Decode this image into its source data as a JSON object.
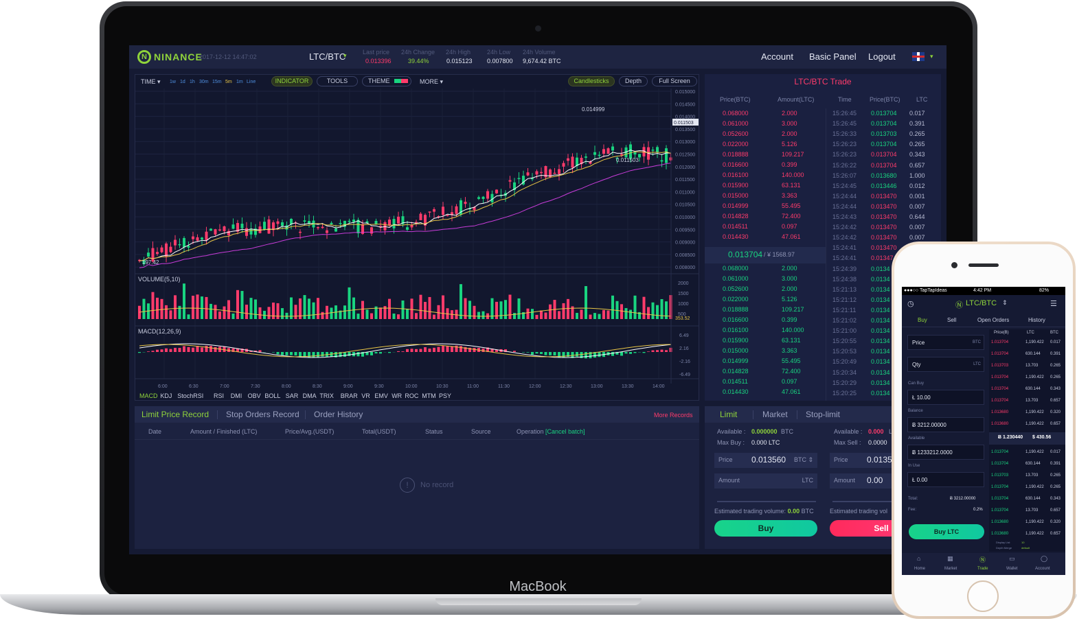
{
  "device": {
    "brand": "MacBook"
  },
  "header": {
    "logo_mark": "N",
    "logo_text": "NINANCE",
    "datetime": "2017-12-12 14:47:02",
    "pair": "LTC/BTC",
    "pair_caret": "▾",
    "stats": [
      {
        "label": "Last price",
        "value": "0.013396",
        "color": "#ff3b6b"
      },
      {
        "label": "24h Change",
        "value": "39.44%",
        "color": "#8fd33b"
      },
      {
        "label": "24h High",
        "value": "0.015123",
        "color": "#e4e7f2"
      },
      {
        "label": "24h Low",
        "value": "0.007800",
        "color": "#e4e7f2"
      },
      {
        "label": "24h Volume",
        "value": "9,674.42 BTC",
        "color": "#e4e7f2"
      }
    ],
    "nav": [
      "Account",
      "Basic Panel",
      "Logout"
    ],
    "lang_caret": "▾"
  },
  "chart_toolbar": {
    "time_label": "TIME ▾",
    "resolutions": [
      "1w",
      "1d",
      "1h",
      "30m",
      "15m",
      "5m",
      "1m",
      "Line"
    ],
    "indicator": "INDICATOR",
    "tools": "TOOLS",
    "theme": "THEME",
    "more": "MORE ▾",
    "candlesticks": "Candlesticks",
    "depth": "Depth",
    "fullscreen": "Full Screen"
  },
  "chart_data": {
    "type": "candlestick",
    "price_axis": [
      "0.015000",
      "0.014500",
      "0.014000",
      "0.013500",
      "0.013000",
      "0.012500",
      "0.012000",
      "0.011500",
      "0.011000",
      "0.010500",
      "0.010000",
      "0.009500",
      "0.009000",
      "0.008500",
      "0.008000"
    ],
    "last_price_tag": "0.011503",
    "annotation_high": "0.014999",
    "annotation_low": "0.011503",
    "annotation_left": "197.42",
    "volume_label": "VOLUME(5,10)",
    "volume_axis": [
      "2000",
      "1500",
      "1000",
      "500"
    ],
    "volume_tag": "353.52",
    "macd_label": "MACD(12,26,9)",
    "macd_axis": [
      "6.49",
      "2.16",
      "-2.16",
      "-6.49"
    ],
    "time_axis": [
      "6:00",
      "6:30",
      "7:00",
      "7:30",
      "8:00",
      "8:30",
      "9:00",
      "9:30",
      "10:00",
      "10:30",
      "11:00",
      "11:30",
      "12:00",
      "12:30",
      "13:00",
      "13:30",
      "14:00"
    ],
    "indicator_tabs": [
      "MACD",
      "KDJ",
      "StochRSI",
      "RSI",
      "DMI",
      "OBV",
      "BOLL",
      "SAR",
      "DMA",
      "TRIX",
      "BRAR",
      "VR",
      "EMV",
      "WR",
      "ROC",
      "MTM",
      "PSY"
    ],
    "colors": {
      "up": "#19d480",
      "down": "#ff3b6b",
      "ma1": "#ffffff",
      "ma2": "#e9c646",
      "ma3": "#c83cd9"
    }
  },
  "order_book": {
    "title": "LTC/BTC Trade",
    "headers": [
      "Price(BTC)",
      "Amount(LTC)",
      "Time",
      "Price(BTC)",
      "LTC"
    ],
    "asks": [
      [
        "0.068000",
        "2.000"
      ],
      [
        "0.061000",
        "3.000"
      ],
      [
        "0.052600",
        "2.000"
      ],
      [
        "0.022000",
        "5.126"
      ],
      [
        "0.018888",
        "109.217"
      ],
      [
        "0.016600",
        "0.399"
      ],
      [
        "0.016100",
        "140.000"
      ],
      [
        "0.015900",
        "63.131"
      ],
      [
        "0.015000",
        "3.363"
      ],
      [
        "0.014999",
        "55.495"
      ],
      [
        "0.014828",
        "72.400"
      ],
      [
        "0.014511",
        "0.097"
      ],
      [
        "0.014430",
        "47.061"
      ]
    ],
    "mid_price": "0.013704",
    "mid_cny": "/ ¥ 1568.97",
    "bids": [
      [
        "0.068000",
        "2.000"
      ],
      [
        "0.061000",
        "3.000"
      ],
      [
        "0.052600",
        "2.000"
      ],
      [
        "0.022000",
        "5.126"
      ],
      [
        "0.018888",
        "109.217"
      ],
      [
        "0.016600",
        "0.399"
      ],
      [
        "0.016100",
        "140.000"
      ],
      [
        "0.015900",
        "63.131"
      ],
      [
        "0.015000",
        "3.363"
      ],
      [
        "0.014999",
        "55.495"
      ],
      [
        "0.014828",
        "72.400"
      ],
      [
        "0.014511",
        "0.097"
      ],
      [
        "0.014430",
        "47.061"
      ]
    ],
    "trades": [
      [
        "15:26:45",
        "0.013704",
        "0.017",
        "up"
      ],
      [
        "15:26:45",
        "0.013704",
        "0.391",
        "up"
      ],
      [
        "15:26:33",
        "0.013703",
        "0.265",
        "up"
      ],
      [
        "15:26:23",
        "0.013704",
        "0.265",
        "up"
      ],
      [
        "15:26:23",
        "0.013704",
        "0.343",
        "down"
      ],
      [
        "15:26:22",
        "0.013704",
        "0.657",
        "down"
      ],
      [
        "15:26:07",
        "0.013680",
        "1.000",
        "up"
      ],
      [
        "15:24:45",
        "0.013446",
        "0.012",
        "up"
      ],
      [
        "15:24:44",
        "0.013470",
        "0.001",
        "down"
      ],
      [
        "15:24:44",
        "0.013470",
        "0.007",
        "down"
      ],
      [
        "15:24:43",
        "0.013470",
        "0.644",
        "down"
      ],
      [
        "15:24:42",
        "0.013470",
        "0.007",
        "down"
      ],
      [
        "15:24:42",
        "0.013470",
        "0.007",
        "down"
      ],
      [
        "15:24:41",
        "0.013470",
        "",
        "down"
      ],
      [
        "15:24:41",
        "0.01347",
        "",
        "down"
      ],
      [
        "15:24:39",
        "0.0134",
        "",
        "up"
      ],
      [
        "15:24:38",
        "0.0134",
        "",
        "up"
      ],
      [
        "15:21:13",
        "0.0134",
        "",
        "up"
      ],
      [
        "15:21:12",
        "0.0134",
        "",
        "up"
      ],
      [
        "15:21:11",
        "0.0134",
        "",
        "up"
      ],
      [
        "15:21:02",
        "0.0134",
        "",
        "up"
      ],
      [
        "15:21:00",
        "0.0134",
        "",
        "up"
      ],
      [
        "15:20:55",
        "0.0134",
        "",
        "up"
      ],
      [
        "15:20:53",
        "0.0134",
        "",
        "up"
      ],
      [
        "15:20:49",
        "0.0134",
        "",
        "up"
      ],
      [
        "15:20:34",
        "0.0134",
        "",
        "up"
      ],
      [
        "15:20:29",
        "0.0134",
        "",
        "up"
      ],
      [
        "15:20:25",
        "0.0134",
        "",
        "up"
      ]
    ]
  },
  "orders": {
    "tabs": [
      "Limit Price Record",
      "Stop Orders Record",
      "Order History"
    ],
    "more": "More Records",
    "columns": [
      "Date",
      "Amount / Finished (LTC)",
      "Price/Avg.(USDT)",
      "Total(USDT)",
      "Status",
      "Source",
      "Operation"
    ],
    "cancel_batch": "[Cancel batch]",
    "empty_icon": "!",
    "empty_text": "No record"
  },
  "trade": {
    "tabs": [
      "Limit",
      "Market",
      "Stop-limit"
    ],
    "buy": {
      "available_label": "Available :",
      "available_value": "0.000000",
      "available_unit": "BTC",
      "max_label": "Max Buy :",
      "max_value": "0.000 LTC",
      "price_label": "Price",
      "price_value": "0.013560",
      "price_unit": "BTC",
      "amount_label": "Amount",
      "amount_unit": "LTC",
      "est_label": "Estimated trading volume:",
      "est_value": "0.00",
      "est_unit": "BTC",
      "button": "Buy"
    },
    "sell": {
      "available_label": "Available :",
      "available_value": "0.000",
      "available_unit": "L",
      "max_label": "Max Sell :",
      "max_value": "0.0000",
      "price_label": "Price",
      "price_value": "0.0135",
      "amount_label": "Amount",
      "amount_value": "0.00",
      "est_label": "Estimated trading vol",
      "button": "Sell"
    }
  },
  "phone": {
    "carrier": "●●●○○ TapTapIdeas",
    "time": "4:42 PM",
    "battery": "82%",
    "title": "LTC/BTC",
    "tabs": [
      "Buy",
      "Sell",
      "Open Orders",
      "History"
    ],
    "price_label": "Price",
    "price_unit": "BTC",
    "qty_label": "Qty",
    "qty_unit": "LTC",
    "can_buy_label": "Can Buy",
    "can_buy_value": "Ł 10.00",
    "balance_label": "Balance",
    "balance_value": "Ƀ 3212.00000",
    "available_label": "Available",
    "available_value": "Ƀ 1233212.0000",
    "in_use_label": "In Use",
    "in_use_value": "Ł 0.00",
    "total_label": "Total:",
    "total_value": "Ƀ 3212.00000",
    "fee_label": "Fee:",
    "fee_value": "0.2%",
    "buy_button": "Buy LTC",
    "book_headers": [
      "Price(B)",
      "LTC",
      "BTC"
    ],
    "book_asks": [
      [
        "1.013704",
        "1,190.422",
        "0.017"
      ],
      [
        "1.013704",
        "630.144",
        "0.391"
      ],
      [
        "1.013703",
        "13.703",
        "0.265"
      ],
      [
        "1.013704",
        "1,190.422",
        "0.265"
      ],
      [
        "1.013704",
        "630.144",
        "0.343"
      ],
      [
        "1.013704",
        "13.703",
        "0.657"
      ],
      [
        "1.013680",
        "1,190.422",
        "0.320"
      ],
      [
        "1.013680",
        "1,190.422",
        "0.657"
      ]
    ],
    "mid_price": "Ƀ 1.230440",
    "mid_usd": "$ 430.56",
    "book_bids": [
      [
        "1.013704",
        "1,190.422",
        "0.017"
      ],
      [
        "1.013704",
        "630.144",
        "0.391"
      ],
      [
        "1.013703",
        "13.703",
        "0.265"
      ],
      [
        "1.013704",
        "1,190.422",
        "0.265"
      ],
      [
        "1.013704",
        "630.144",
        "0.343"
      ],
      [
        "1.013704",
        "13.703",
        "0.657"
      ],
      [
        "1.013680",
        "1,190.422",
        "0.320"
      ],
      [
        "1.013680",
        "1,190.422",
        "0.657"
      ]
    ],
    "display_list_label": "Display List",
    "display_list_value": "10",
    "depth_merge_label": "Depth Merge",
    "depth_merge_value": "default",
    "bottom_nav": [
      "Home",
      "Market",
      "Trade",
      "Wallet",
      "Account"
    ]
  }
}
